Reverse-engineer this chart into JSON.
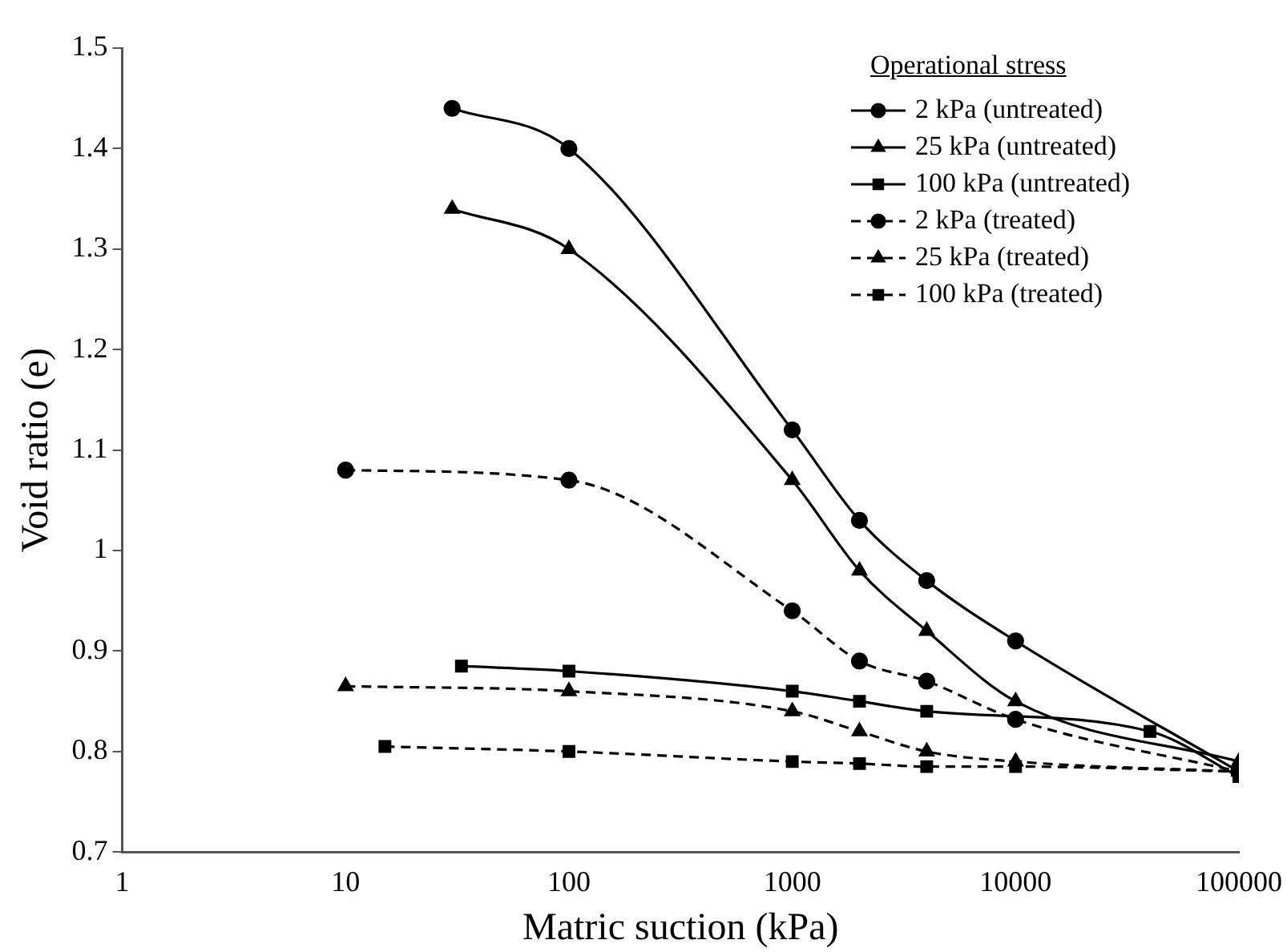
{
  "chart_data": {
    "type": "line",
    "xlabel": "Matric suction (kPa)",
    "ylabel": "Void ratio (e)",
    "legend_title": "Operational stress",
    "legend": "top right",
    "grid": false,
    "log": "x",
    "xlim": [
      1,
      100000
    ],
    "xticks": [
      1,
      10,
      100,
      1000,
      10000,
      100000
    ],
    "ylim": [
      0.7,
      1.5
    ],
    "yticks": [
      0.7,
      0.8,
      0.9,
      1,
      1.1,
      1.2,
      1.3,
      1.4,
      1.5
    ],
    "series": [
      {
        "name": "2 kPa (untreated)",
        "color": "#000000",
        "marker": "circle",
        "line_style": "solid",
        "x": [
          30,
          100,
          1000,
          2000,
          4000,
          10000,
          100000
        ],
        "values": [
          1.44,
          1.4,
          1.12,
          1.03,
          0.97,
          0.91,
          0.78
        ]
      },
      {
        "name": "25 kPa (untreated)",
        "color": "#000000",
        "marker": "triangle",
        "line_style": "solid",
        "x": [
          30,
          100,
          1000,
          2000,
          4000,
          10000,
          100000
        ],
        "values": [
          1.34,
          1.3,
          1.07,
          0.98,
          0.92,
          0.85,
          0.79
        ]
      },
      {
        "name": "100 kPa (untreated)",
        "color": "#000000",
        "marker": "square",
        "line_style": "solid",
        "x": [
          33,
          100,
          1000,
          2000,
          4000,
          40000,
          100000
        ],
        "values": [
          0.885,
          0.88,
          0.86,
          0.85,
          0.84,
          0.82,
          0.775
        ]
      },
      {
        "name": "2 kPa (treated)",
        "color": "#000000",
        "marker": "circle",
        "line_style": "dashed",
        "x": [
          10,
          100,
          1000,
          2000,
          4000,
          10000,
          100000
        ],
        "values": [
          1.08,
          1.07,
          0.94,
          0.89,
          0.87,
          0.832,
          0.78
        ]
      },
      {
        "name": "25 kPa (treated)",
        "color": "#000000",
        "marker": "triangle",
        "line_style": "dashed",
        "x": [
          10,
          100,
          1000,
          2000,
          4000,
          10000,
          100000
        ],
        "values": [
          0.865,
          0.86,
          0.84,
          0.82,
          0.8,
          0.79,
          0.78
        ]
      },
      {
        "name": "100 kPa (treated)",
        "color": "#000000",
        "marker": "square",
        "line_style": "dashed",
        "x": [
          15,
          100,
          1000,
          2000,
          4000,
          10000,
          100000
        ],
        "values": [
          0.805,
          0.8,
          0.79,
          0.788,
          0.785,
          0.785,
          0.78
        ]
      }
    ]
  }
}
